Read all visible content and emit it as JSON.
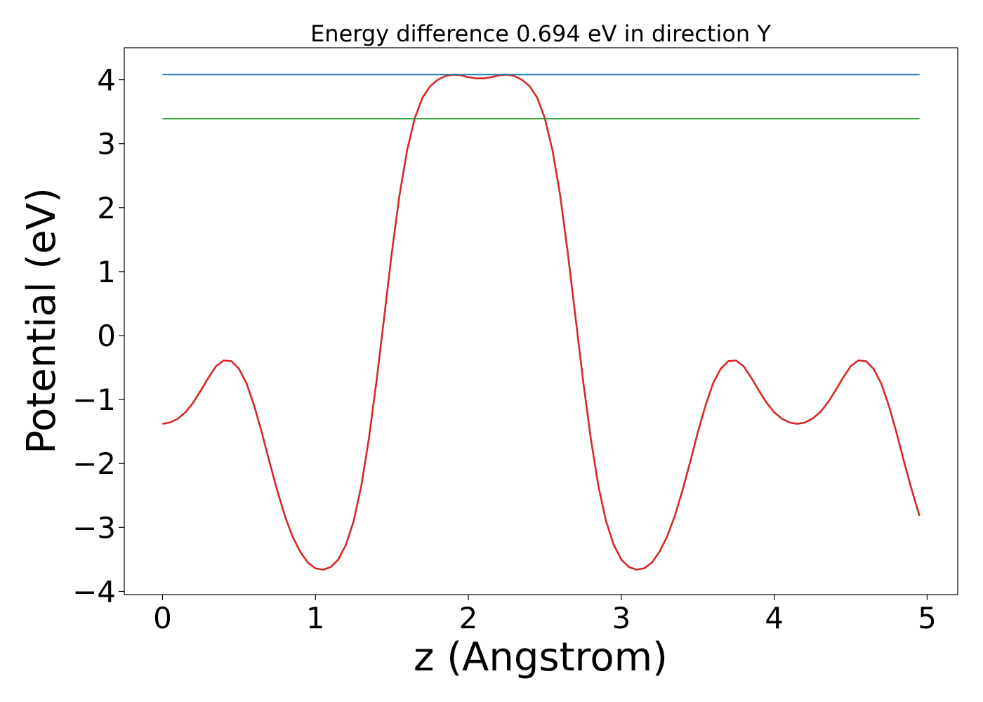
{
  "chart_data": {
    "type": "line",
    "title": "Energy difference 0.694 eV in direction Y",
    "xlabel": "z (Angstrom)",
    "ylabel": "Potential (eV)",
    "xlim": [
      -0.25,
      5.2
    ],
    "ylim": [
      -4.05,
      4.5
    ],
    "xticks": [
      0,
      1,
      2,
      3,
      4,
      5
    ],
    "xtick_labels": [
      "0",
      "1",
      "2",
      "3",
      "4",
      "5"
    ],
    "yticks": [
      -4,
      -3,
      -2,
      -1,
      0,
      1,
      2,
      3,
      4
    ],
    "ytick_labels": [
      "−4",
      "−3",
      "−2",
      "−1",
      "0",
      "1",
      "2",
      "3",
      "4"
    ],
    "grid": false,
    "series": [
      {
        "color": "#d62728",
        "x": [
          0,
          0.05,
          0.1,
          0.15,
          0.2,
          0.25,
          0.3,
          0.35,
          0.4,
          0.45,
          0.5,
          0.55,
          0.6,
          0.65,
          0.7,
          0.75,
          0.8,
          0.85,
          0.9,
          0.95,
          1.0,
          1.05,
          1.1,
          1.15,
          1.2,
          1.25,
          1.3,
          1.35,
          1.4,
          1.45,
          1.5,
          1.55,
          1.6,
          1.65,
          1.7,
          1.75,
          1.8,
          1.85,
          1.9,
          1.95,
          2.0,
          2.05,
          2.1,
          2.15,
          2.2,
          2.25,
          2.3,
          2.35,
          2.4,
          2.45,
          2.5,
          2.55,
          2.6,
          2.65,
          2.7,
          2.75,
          2.8,
          2.85,
          2.9,
          2.95,
          3.0,
          3.05,
          3.1,
          3.15,
          3.2,
          3.25,
          3.3,
          3.35,
          3.4,
          3.45,
          3.5,
          3.55,
          3.6,
          3.65,
          3.7,
          3.75,
          3.8,
          3.85,
          3.9,
          3.95,
          4.0,
          4.05,
          4.1,
          4.15,
          4.2,
          4.25,
          4.3,
          4.35,
          4.4,
          4.45,
          4.5,
          4.55,
          4.6,
          4.65,
          4.7,
          4.75,
          4.8,
          4.85,
          4.9,
          4.95
        ],
        "y": [
          -1.38,
          -1.36,
          -1.3,
          -1.2,
          -1.05,
          -0.86,
          -0.66,
          -0.48,
          -0.39,
          -0.4,
          -0.52,
          -0.75,
          -1.1,
          -1.52,
          -1.98,
          -2.42,
          -2.82,
          -3.14,
          -3.38,
          -3.55,
          -3.64,
          -3.66,
          -3.62,
          -3.5,
          -3.27,
          -2.9,
          -2.35,
          -1.6,
          -0.7,
          0.3,
          1.3,
          2.2,
          2.9,
          3.4,
          3.72,
          3.9,
          4.0,
          4.06,
          4.08,
          4.07,
          4.04,
          4.02,
          4.02,
          4.04,
          4.07,
          4.08,
          4.06,
          4.0,
          3.9,
          3.72,
          3.4,
          2.9,
          2.2,
          1.3,
          0.3,
          -0.7,
          -1.6,
          -2.35,
          -2.9,
          -3.27,
          -3.5,
          -3.62,
          -3.66,
          -3.64,
          -3.55,
          -3.38,
          -3.14,
          -2.82,
          -2.42,
          -1.98,
          -1.52,
          -1.1,
          -0.75,
          -0.52,
          -0.4,
          -0.39,
          -0.48,
          -0.66,
          -0.86,
          -1.05,
          -1.2,
          -1.3,
          -1.36,
          -1.38,
          -1.36,
          -1.3,
          -1.2,
          -1.05,
          -0.86,
          -0.66,
          -0.48,
          -0.39,
          -0.4,
          -0.52,
          -0.75,
          -1.1,
          -1.52,
          -1.98,
          -2.42,
          -2.82
        ]
      },
      {
        "color": "#1f77b4",
        "x": [
          0,
          4.95
        ],
        "y": [
          4.08,
          4.08
        ]
      },
      {
        "color": "#2ca02c",
        "x": [
          0,
          4.95
        ],
        "y": [
          3.39,
          3.39
        ]
      }
    ]
  }
}
